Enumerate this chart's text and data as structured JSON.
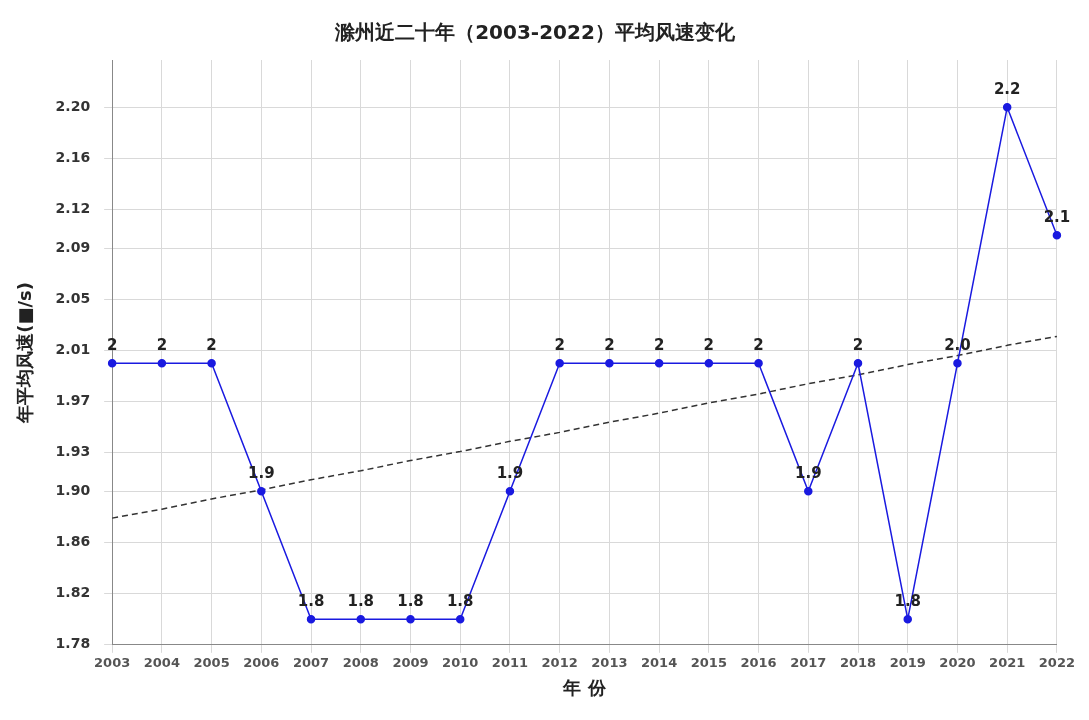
{
  "chart_data": {
    "type": "line",
    "title": "滁州近二十年（2003-2022）平均风速变化",
    "xlabel": "年 份",
    "ylabel": "年平均风速(■/s)",
    "categories": [
      "2003",
      "2004",
      "2005",
      "2006",
      "2007",
      "2008",
      "2009",
      "2010",
      "2011",
      "2012",
      "2013",
      "2014",
      "2015",
      "2016",
      "2017",
      "2018",
      "2019",
      "2020",
      "2021",
      "2022"
    ],
    "series": [
      {
        "color": "#1a1ae0",
        "values": [
          2,
          2,
          2,
          1.9,
          1.8,
          1.8,
          1.8,
          1.8,
          1.9,
          2,
          2,
          2,
          2,
          2,
          1.9,
          2,
          1.8,
          2.0,
          2.2,
          2.1
        ],
        "value_labels": [
          "2",
          "2",
          "2",
          "1.9",
          "1.8",
          "1.8",
          "1.8",
          "1.8",
          "1.9",
          "2",
          "2",
          "2",
          "2",
          "2",
          "1.9",
          "2",
          "1.8",
          "2.0",
          "2.2",
          "2.1"
        ],
        "marker": "circle",
        "line_style": "solid"
      },
      {
        "type": "line",
        "color": "#333333",
        "values": [
          1.879,
          1.886,
          1.894,
          1.901,
          1.909,
          1.916,
          1.924,
          1.931,
          1.939,
          1.946,
          1.954,
          1.961,
          1.969,
          1.976,
          1.984,
          1.991,
          1.999,
          2.006,
          2.014,
          2.021
        ],
        "marker": "none",
        "line_style": "dashed"
      }
    ],
    "ylim": [
      1.78,
      2.237
    ],
    "yticks": [
      1.78,
      {
        "value": 1.82,
        "label": "1.82"
      },
      {
        "value": 1.86,
        "label": "1.86"
      },
      {
        "value": 1.9,
        "label": "1.90"
      },
      {
        "value": 1.93,
        "label": "1.93"
      },
      {
        "value": 1.97,
        "label": "1.97"
      },
      {
        "value": 2.01,
        "label": "2.01"
      },
      {
        "value": 2.05,
        "label": "2.05"
      },
      {
        "value": 2.09,
        "label": "2.09"
      },
      {
        "value": 2.12,
        "label": "2.12"
      },
      {
        "value": 2.16,
        "label": "2.16"
      },
      {
        "value": 2.2,
        "label": "2.20"
      }
    ],
    "grid": true,
    "legend": false
  }
}
